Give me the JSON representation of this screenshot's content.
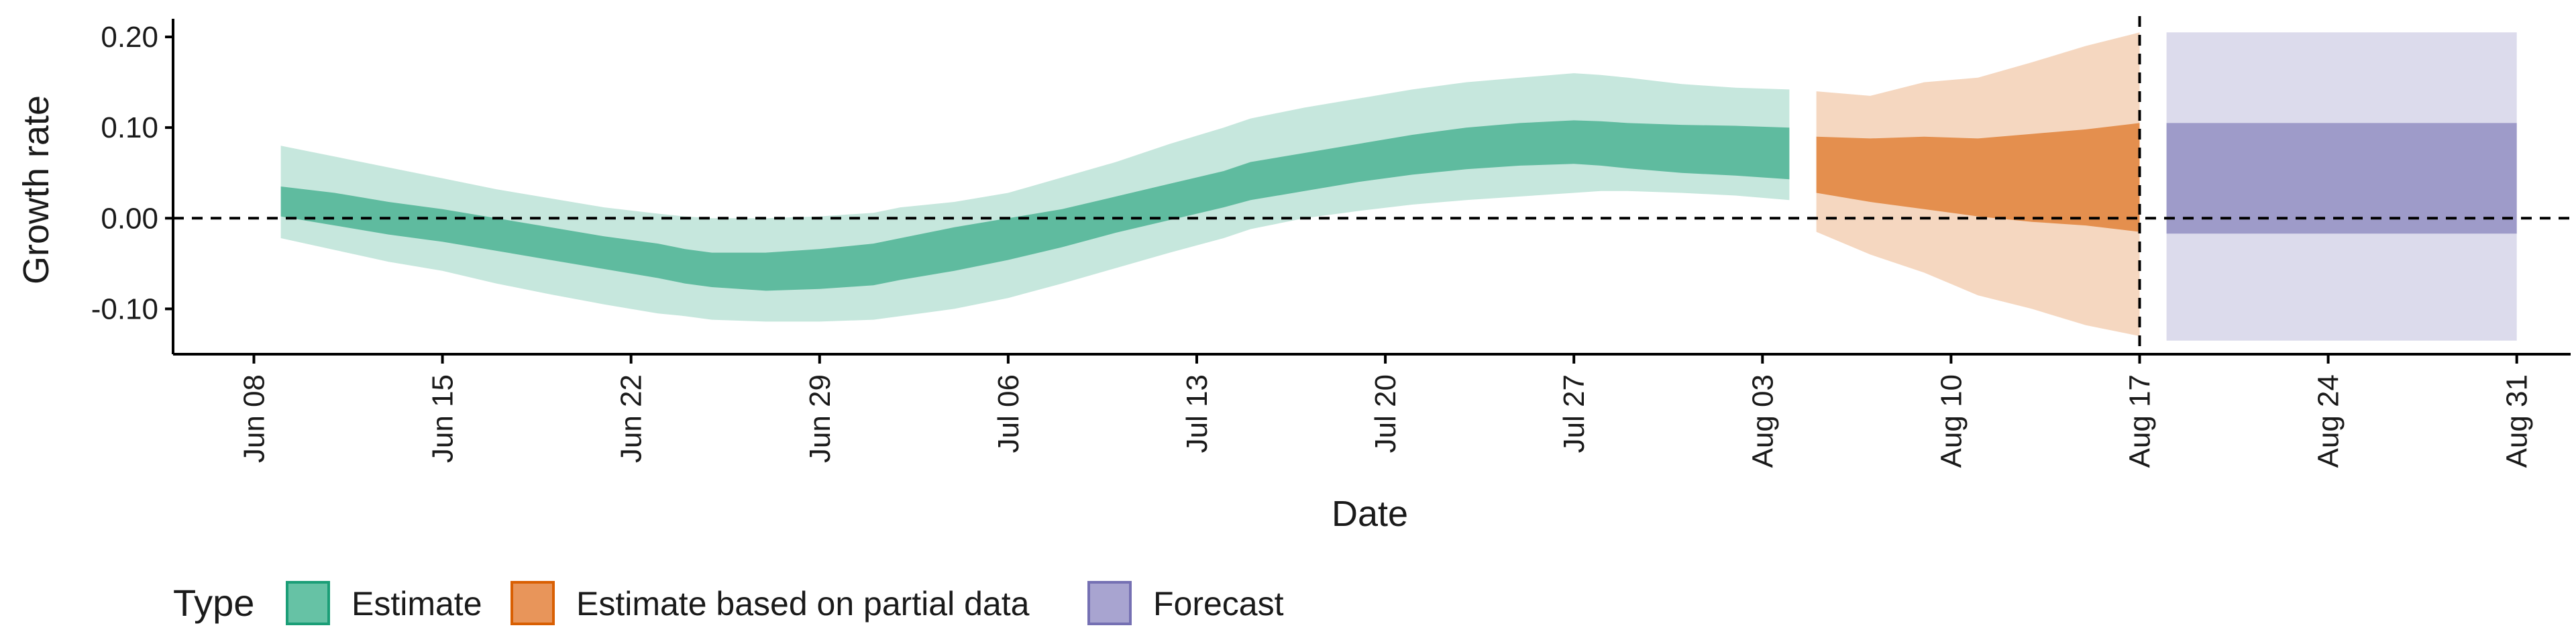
{
  "chart_data": {
    "type": "area",
    "title": "",
    "xlabel": "Date",
    "ylabel": "Growth rate",
    "x_range": [
      "2020-06-05",
      "2020-09-02"
    ],
    "ylim": [
      -0.15,
      0.22
    ],
    "y_ticks": [
      {
        "value": 0.2,
        "label": "0.20"
      },
      {
        "value": 0.1,
        "label": "0.10"
      },
      {
        "value": 0.0,
        "label": "0.00"
      },
      {
        "value": -0.1,
        "label": "-0.10"
      }
    ],
    "x_ticks": [
      {
        "date": "2020-06-08",
        "label": "Jun 08"
      },
      {
        "date": "2020-06-15",
        "label": "Jun 15"
      },
      {
        "date": "2020-06-22",
        "label": "Jun 22"
      },
      {
        "date": "2020-06-29",
        "label": "Jun 29"
      },
      {
        "date": "2020-07-06",
        "label": "Jul 06"
      },
      {
        "date": "2020-07-13",
        "label": "Jul 13"
      },
      {
        "date": "2020-07-20",
        "label": "Jul 20"
      },
      {
        "date": "2020-07-27",
        "label": "Jul 27"
      },
      {
        "date": "2020-08-03",
        "label": "Aug 03"
      },
      {
        "date": "2020-08-10",
        "label": "Aug 10"
      },
      {
        "date": "2020-08-17",
        "label": "Aug 17"
      },
      {
        "date": "2020-08-24",
        "label": "Aug 24"
      },
      {
        "date": "2020-08-31",
        "label": "Aug 31"
      }
    ],
    "reference_lines": [
      {
        "axis": "y",
        "value": 0.0,
        "style": "dashed"
      },
      {
        "axis": "x",
        "date": "2020-08-17",
        "style": "dashed"
      }
    ],
    "grid": false,
    "legend": {
      "title": "Type",
      "position": "bottom-left",
      "entries": [
        {
          "label": "Estimate",
          "color": "#66c2a5",
          "border": "#1b9e77"
        },
        {
          "label": "Estimate based on partial data",
          "color": "#e8955a",
          "border": "#d95f02"
        },
        {
          "label": "Forecast",
          "color": "#a8a4d0",
          "border": "#7570b3"
        }
      ]
    },
    "series": [
      {
        "name": "Estimate",
        "color": "#1b9e77",
        "dates": [
          "2020-06-09",
          "2020-06-11",
          "2020-06-13",
          "2020-06-15",
          "2020-06-17",
          "2020-06-19",
          "2020-06-21",
          "2020-06-23",
          "2020-06-24",
          "2020-06-25",
          "2020-06-27",
          "2020-06-29",
          "2020-07-01",
          "2020-07-02",
          "2020-07-04",
          "2020-07-06",
          "2020-07-08",
          "2020-07-10",
          "2020-07-12",
          "2020-07-14",
          "2020-07-15",
          "2020-07-17",
          "2020-07-19",
          "2020-07-21",
          "2020-07-23",
          "2020-07-25",
          "2020-07-27",
          "2020-07-28",
          "2020-07-29",
          "2020-07-31",
          "2020-08-02",
          "2020-08-04"
        ],
        "outer_lower": [
          -0.022,
          -0.035,
          -0.048,
          -0.058,
          -0.072,
          -0.084,
          -0.095,
          -0.105,
          -0.108,
          -0.112,
          -0.114,
          -0.114,
          -0.112,
          -0.108,
          -0.1,
          -0.088,
          -0.072,
          -0.055,
          -0.038,
          -0.022,
          -0.012,
          0.0,
          0.008,
          0.015,
          0.02,
          0.024,
          0.028,
          0.03,
          0.03,
          0.028,
          0.025,
          0.02
        ],
        "outer_upper": [
          0.08,
          0.068,
          0.056,
          0.044,
          0.032,
          0.022,
          0.012,
          0.005,
          0.002,
          0.0,
          0.0,
          0.002,
          0.006,
          0.012,
          0.018,
          0.028,
          0.045,
          0.062,
          0.082,
          0.1,
          0.11,
          0.122,
          0.132,
          0.142,
          0.15,
          0.155,
          0.16,
          0.158,
          0.155,
          0.148,
          0.144,
          0.142
        ],
        "inner_lower": [
          0.002,
          -0.008,
          -0.018,
          -0.026,
          -0.036,
          -0.046,
          -0.056,
          -0.066,
          -0.072,
          -0.076,
          -0.08,
          -0.078,
          -0.074,
          -0.068,
          -0.058,
          -0.046,
          -0.032,
          -0.016,
          -0.002,
          0.012,
          0.02,
          0.03,
          0.04,
          0.048,
          0.054,
          0.058,
          0.06,
          0.058,
          0.055,
          0.05,
          0.047,
          0.043
        ],
        "inner_upper": [
          0.035,
          0.028,
          0.018,
          0.01,
          0.0,
          -0.01,
          -0.02,
          -0.028,
          -0.034,
          -0.038,
          -0.038,
          -0.034,
          -0.028,
          -0.022,
          -0.01,
          0.0,
          0.01,
          0.024,
          0.038,
          0.052,
          0.062,
          0.072,
          0.082,
          0.092,
          0.1,
          0.105,
          0.108,
          0.107,
          0.105,
          0.103,
          0.102,
          0.1
        ]
      },
      {
        "name": "Estimate based on partial data",
        "color": "#d95f02",
        "dates": [
          "2020-08-05",
          "2020-08-07",
          "2020-08-09",
          "2020-08-11",
          "2020-08-13",
          "2020-08-15",
          "2020-08-17"
        ],
        "outer_lower": [
          -0.015,
          -0.04,
          -0.06,
          -0.085,
          -0.1,
          -0.118,
          -0.13
        ],
        "outer_upper": [
          0.14,
          0.135,
          0.15,
          0.155,
          0.172,
          0.19,
          0.205
        ],
        "inner_lower": [
          0.028,
          0.018,
          0.01,
          0.002,
          -0.004,
          -0.008,
          -0.015
        ],
        "inner_upper": [
          0.09,
          0.088,
          0.09,
          0.088,
          0.093,
          0.098,
          0.105
        ]
      },
      {
        "name": "Forecast",
        "color": "#7570b3",
        "dates": [
          "2020-08-18",
          "2020-08-31"
        ],
        "outer_lower": [
          -0.135,
          -0.135
        ],
        "outer_upper": [
          0.205,
          0.205
        ],
        "inner_lower": [
          -0.017,
          -0.017
        ],
        "inner_upper": [
          0.105,
          0.105
        ]
      }
    ]
  }
}
